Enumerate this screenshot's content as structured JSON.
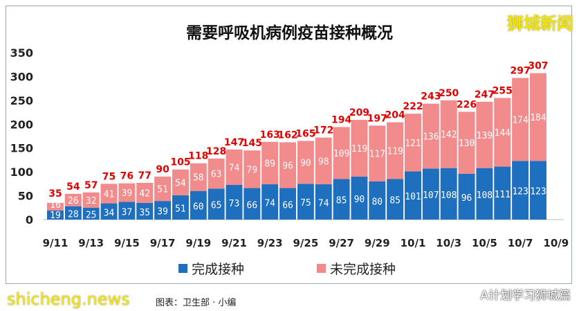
{
  "watermark_top": "狮城新闻",
  "watermark_bottom": "shicheng.news",
  "credit": "图表：卫生部 · 小编",
  "wechat_source": "A计划学习狮城篇",
  "colors": {
    "completed": "#1f6fbf",
    "uncompleted": "#f28b8b",
    "total_label": "#e00000"
  },
  "chart_data": {
    "type": "bar",
    "stacked": true,
    "title": "需要呼吸机病例疫苗接种概况",
    "categories": [
      "9/11",
      "9/12",
      "9/13",
      "9/14",
      "9/15",
      "9/16",
      "9/17",
      "9/18",
      "9/19",
      "9/20",
      "9/21",
      "9/22",
      "9/23",
      "9/24",
      "9/25",
      "9/26",
      "9/27",
      "9/28",
      "9/29",
      "9/30",
      "10/1",
      "10/2",
      "10/3",
      "10/4",
      "10/5",
      "10/6",
      "10/7",
      "10/8"
    ],
    "x_tick_labels": [
      "9/11",
      "9/13",
      "9/15",
      "9/17",
      "9/19",
      "9/21",
      "9/23",
      "9/25",
      "9/27",
      "9/29",
      "10/1",
      "10/3",
      "10/5",
      "10/7",
      "10/9"
    ],
    "series": [
      {
        "name": "完成接种",
        "values": [
          19,
          28,
          25,
          34,
          37,
          35,
          39,
          51,
          60,
          65,
          73,
          66,
          74,
          66,
          75,
          74,
          85,
          90,
          80,
          85,
          101,
          107,
          108,
          96,
          108,
          111,
          123,
          123
        ]
      },
      {
        "name": "未完成接种",
        "values": [
          16,
          26,
          32,
          41,
          39,
          42,
          51,
          54,
          58,
          63,
          74,
          79,
          89,
          96,
          90,
          98,
          109,
          119,
          117,
          119,
          121,
          136,
          142,
          130,
          139,
          144,
          174,
          184
        ]
      }
    ],
    "totals": [
      35,
      54,
      57,
      75,
      76,
      77,
      90,
      105,
      118,
      128,
      147,
      145,
      163,
      162,
      165,
      172,
      194,
      209,
      197,
      204,
      222,
      243,
      250,
      226,
      247,
      255,
      297,
      307
    ],
    "ylim": [
      0,
      350
    ],
    "y_ticks": [
      0,
      50,
      100,
      150,
      200,
      250,
      300,
      350
    ],
    "grid": false,
    "legend": "bottom"
  }
}
